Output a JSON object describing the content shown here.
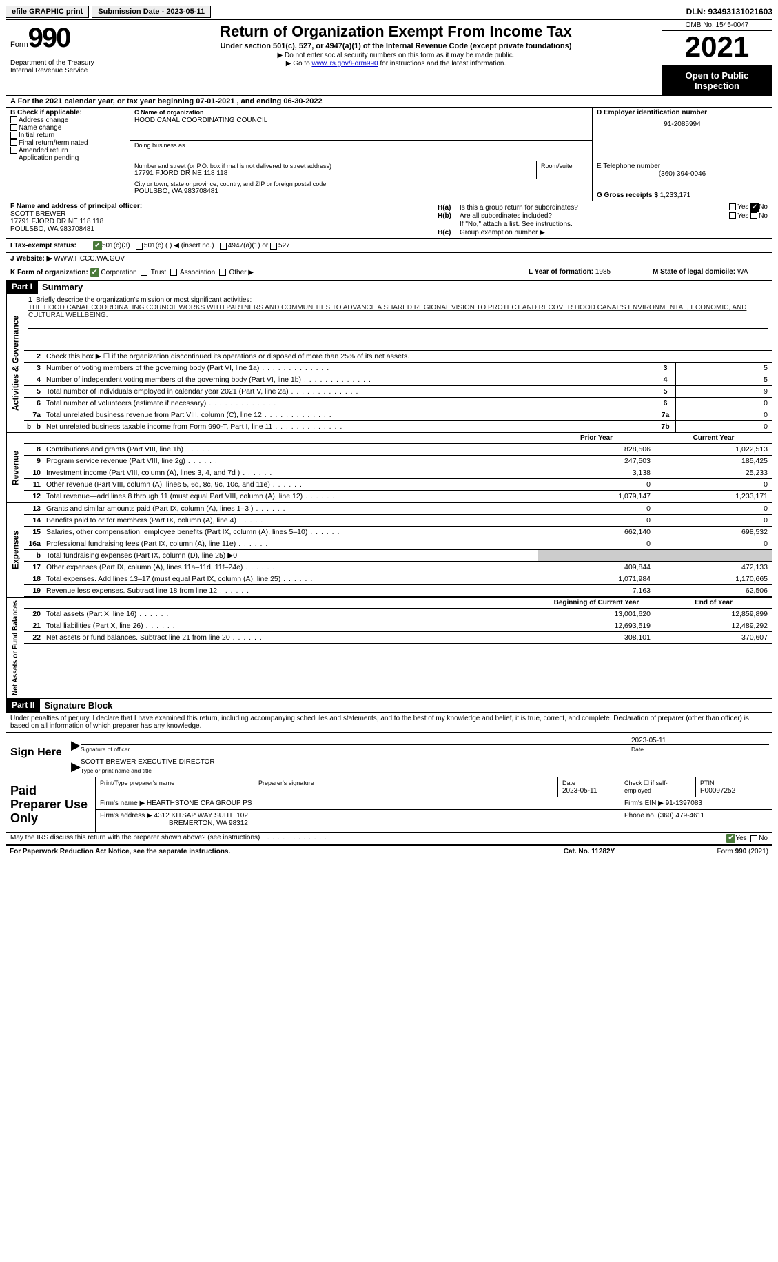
{
  "topbar": {
    "efile": "efile GRAPHIC print",
    "submission": "Submission Date - 2023-05-11",
    "dln": "DLN: 93493131021603"
  },
  "header": {
    "form_word": "Form",
    "form_num": "990",
    "dept": "Department of the Treasury\nInternal Revenue Service",
    "title": "Return of Organization Exempt From Income Tax",
    "subtitle": "Under section 501(c), 527, or 4947(a)(1) of the Internal Revenue Code (except private foundations)",
    "instr1": "▶ Do not enter social security numbers on this form as it may be made public.",
    "instr2_pre": "▶ Go to ",
    "instr2_link": "www.irs.gov/Form990",
    "instr2_post": " for instructions and the latest information.",
    "omb": "OMB No. 1545-0047",
    "year": "2021",
    "inspect": "Open to Public Inspection"
  },
  "line_a": {
    "pre": "A For the 2021 calendar year, or tax year beginning ",
    "begin": "07-01-2021",
    "mid": "   , and ending ",
    "end": "06-30-2022"
  },
  "b": {
    "label": "B Check if applicable:",
    "opts": [
      "Address change",
      "Name change",
      "Initial return",
      "Final return/terminated",
      "Amended return",
      "Application pending"
    ]
  },
  "c": {
    "name_label": "C Name of organization",
    "name": "HOOD CANAL COORDINATING COUNCIL",
    "dba_label": "Doing business as",
    "street_label": "Number and street (or P.O. box if mail is not delivered to street address)",
    "room_label": "Room/suite",
    "street": "17791 FJORD DR NE 118 118",
    "city_label": "City or town, state or province, country, and ZIP or foreign postal code",
    "city": "POULSBO, WA  983708481"
  },
  "d": {
    "label": "D Employer identification number",
    "val": "91-2085994"
  },
  "e": {
    "label": "E Telephone number",
    "val": "(360) 394-0046"
  },
  "g": {
    "label": "G Gross receipts $",
    "val": "1,233,171"
  },
  "f": {
    "label": "F  Name and address of principal officer:",
    "name": "SCOTT BREWER",
    "addr1": "17791 FJORD DR NE 118 118",
    "addr2": "POULSBO, WA  983708481"
  },
  "h": {
    "a": "Is this a group return for subordinates?",
    "b": "Are all subordinates included?",
    "b_note": "If \"No,\" attach a list. See instructions.",
    "c": "Group exemption number ▶",
    "yes": "Yes",
    "no": "No"
  },
  "i": {
    "label": "I  Tax-exempt status:",
    "o1": "501(c)(3)",
    "o2": "501(c) (  ) ◀ (insert no.)",
    "o3": "4947(a)(1) or",
    "o4": "527"
  },
  "j": {
    "label": "J  Website: ▶",
    "val": "WWW.HCCC.WA.GOV"
  },
  "k": {
    "label": "K Form of organization:",
    "corp": "Corporation",
    "trust": "Trust",
    "assoc": "Association",
    "other": "Other ▶"
  },
  "l": {
    "label": "L Year of formation:",
    "val": "1985"
  },
  "m": {
    "label": "M State of legal domicile:",
    "val": "WA"
  },
  "part1": {
    "hdr": "Part I",
    "title": "Summary"
  },
  "mission": {
    "label": "Briefly describe the organization's mission or most significant activities:",
    "text": "THE HOOD CANAL COORDINATING COUNCIL WORKS WITH PARTNERS AND COMMUNITIES TO ADVANCE A SHARED REGIONAL VISION TO PROTECT AND RECOVER HOOD CANAL'S ENVIRONMENTAL, ECONOMIC, AND CULTURAL WELLBEING."
  },
  "line2": "Check this box ▶ ☐  if the organization discontinued its operations or disposed of more than 25% of its net assets.",
  "summary_rows": [
    {
      "n": "3",
      "t": "Number of voting members of the governing body (Part VI, line 1a)",
      "box": "3",
      "v": "5"
    },
    {
      "n": "4",
      "t": "Number of independent voting members of the governing body (Part VI, line 1b)",
      "box": "4",
      "v": "5"
    },
    {
      "n": "5",
      "t": "Total number of individuals employed in calendar year 2021 (Part V, line 2a)",
      "box": "5",
      "v": "9"
    },
    {
      "n": "6",
      "t": "Total number of volunteers (estimate if necessary)",
      "box": "6",
      "v": "0"
    },
    {
      "n": "7a",
      "t": "Total unrelated business revenue from Part VIII, column (C), line 12",
      "box": "7a",
      "v": "0"
    },
    {
      "n": "b",
      "t": "Net unrelated business taxable income from Form 990-T, Part I, line 11",
      "box": "7b",
      "v": "0"
    }
  ],
  "col_hdrs": {
    "prior": "Prior Year",
    "current": "Current Year"
  },
  "revenue_label": "Revenue",
  "revenue": [
    {
      "n": "8",
      "t": "Contributions and grants (Part VIII, line 1h)",
      "p": "828,506",
      "c": "1,022,513"
    },
    {
      "n": "9",
      "t": "Program service revenue (Part VIII, line 2g)",
      "p": "247,503",
      "c": "185,425"
    },
    {
      "n": "10",
      "t": "Investment income (Part VIII, column (A), lines 3, 4, and 7d )",
      "p": "3,138",
      "c": "25,233"
    },
    {
      "n": "11",
      "t": "Other revenue (Part VIII, column (A), lines 5, 6d, 8c, 9c, 10c, and 11e)",
      "p": "0",
      "c": "0"
    },
    {
      "n": "12",
      "t": "Total revenue—add lines 8 through 11 (must equal Part VIII, column (A), line 12)",
      "p": "1,079,147",
      "c": "1,233,171"
    }
  ],
  "expenses_label": "Expenses",
  "expenses": [
    {
      "n": "13",
      "t": "Grants and similar amounts paid (Part IX, column (A), lines 1–3 )",
      "p": "0",
      "c": "0"
    },
    {
      "n": "14",
      "t": "Benefits paid to or for members (Part IX, column (A), line 4)",
      "p": "0",
      "c": "0"
    },
    {
      "n": "15",
      "t": "Salaries, other compensation, employee benefits (Part IX, column (A), lines 5–10)",
      "p": "662,140",
      "c": "698,532"
    },
    {
      "n": "16a",
      "t": "Professional fundraising fees (Part IX, column (A), line 11e)",
      "p": "0",
      "c": "0"
    },
    {
      "n": "b",
      "t": "Total fundraising expenses (Part IX, column (D), line 25) ▶0",
      "p": "",
      "c": "",
      "shaded": true
    },
    {
      "n": "17",
      "t": "Other expenses (Part IX, column (A), lines 11a–11d, 11f–24e)",
      "p": "409,844",
      "c": "472,133"
    },
    {
      "n": "18",
      "t": "Total expenses. Add lines 13–17 (must equal Part IX, column (A), line 25)",
      "p": "1,071,984",
      "c": "1,170,665"
    },
    {
      "n": "19",
      "t": "Revenue less expenses. Subtract line 18 from line 12",
      "p": "7,163",
      "c": "62,506"
    }
  ],
  "na_hdrs": {
    "begin": "Beginning of Current Year",
    "end": "End of Year"
  },
  "netassets_label": "Net Assets or Fund Balances",
  "netassets": [
    {
      "n": "20",
      "t": "Total assets (Part X, line 16)",
      "p": "13,001,620",
      "c": "12,859,899"
    },
    {
      "n": "21",
      "t": "Total liabilities (Part X, line 26)",
      "p": "12,693,519",
      "c": "12,489,292"
    },
    {
      "n": "22",
      "t": "Net assets or fund balances. Subtract line 21 from line 20",
      "p": "308,101",
      "c": "370,607"
    }
  ],
  "part2": {
    "hdr": "Part II",
    "title": "Signature Block"
  },
  "sig": {
    "perjury": "Under penalties of perjury, I declare that I have examined this return, including accompanying schedules and statements, and to the best of my knowledge and belief, it is true, correct, and complete. Declaration of preparer (other than officer) is based on all information of which preparer has any knowledge.",
    "sign_here": "Sign Here",
    "sig_officer": "Signature of officer",
    "date": "Date",
    "date_val": "2023-05-11",
    "name_title": "SCOTT BREWER  EXECUTIVE DIRECTOR",
    "name_title_label": "Type or print name and title"
  },
  "prep": {
    "label": "Paid Preparer Use Only",
    "col1": "Print/Type preparer's name",
    "col2": "Preparer's signature",
    "col3": "Date",
    "col3v": "2023-05-11",
    "col4": "Check ☐ if self-employed",
    "col5": "PTIN",
    "col5v": "P00097252",
    "firm_name_l": "Firm's name    ▶",
    "firm_name": "HEARTHSTONE CPA GROUP PS",
    "firm_ein_l": "Firm's EIN ▶",
    "firm_ein": "91-1397083",
    "firm_addr_l": "Firm's address ▶",
    "firm_addr": "4312 KITSAP WAY SUITE 102",
    "firm_city": "BREMERTON, WA  98312",
    "phone_l": "Phone no.",
    "phone": "(360) 479-4611"
  },
  "footer": {
    "discuss": "May the IRS discuss this return with the preparer shown above? (see instructions)",
    "yes": "Yes",
    "no": "No",
    "pra": "For Paperwork Reduction Act Notice, see the separate instructions.",
    "cat": "Cat. No. 11282Y",
    "form": "Form 990 (2021)"
  }
}
